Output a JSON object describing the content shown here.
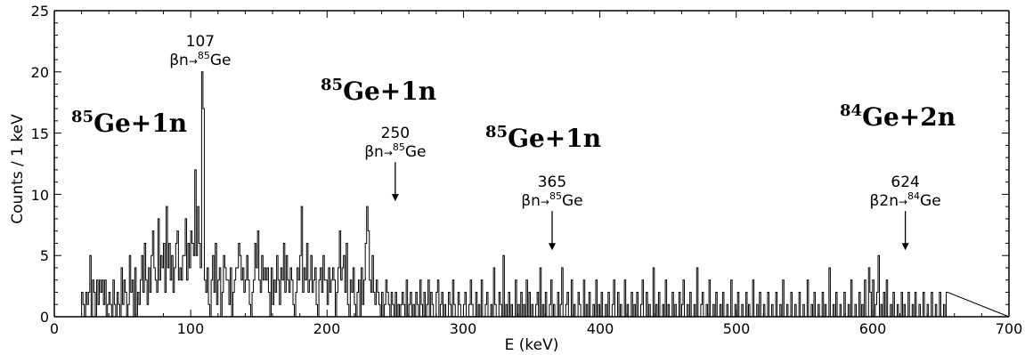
{
  "chart_data": {
    "type": "histogram",
    "title": "",
    "xlabel": "E (keV)",
    "ylabel": "Counts / 1 keV",
    "xlim": [
      0,
      700
    ],
    "ylim": [
      0,
      25
    ],
    "xticks": [
      "0",
      "100",
      "200",
      "300",
      "400",
      "500",
      "600",
      "700"
    ],
    "yticks": [
      "0",
      "5",
      "10",
      "15",
      "20",
      "25"
    ],
    "grid": false,
    "bin_width_keV": 1,
    "x_start": 20,
    "x_end": 700,
    "counts": [
      2,
      1,
      0,
      2,
      1,
      2,
      5,
      0,
      3,
      2,
      0,
      3,
      1,
      3,
      2,
      3,
      1,
      3,
      0,
      1,
      2,
      1,
      0,
      3,
      1,
      0,
      2,
      1,
      0,
      4,
      1,
      3,
      2,
      0,
      1,
      5,
      2,
      3,
      0,
      4,
      0,
      2,
      1,
      3,
      5,
      2,
      6,
      3,
      1,
      4,
      2,
      5,
      7,
      4,
      3,
      2,
      8,
      3,
      5,
      4,
      6,
      2,
      9,
      4,
      6,
      3,
      5,
      2,
      4,
      6,
      7,
      3,
      4,
      3,
      5,
      5,
      8,
      3,
      6,
      4,
      7,
      6,
      5,
      12,
      5,
      9,
      6,
      4,
      20,
      17,
      3,
      2,
      4,
      1,
      0,
      3,
      5,
      2,
      6,
      1,
      3,
      4,
      0,
      2,
      5,
      4,
      3,
      3,
      1,
      4,
      0,
      2,
      3,
      4,
      4,
      6,
      5,
      3,
      4,
      2,
      3,
      5,
      3,
      1,
      0,
      2,
      3,
      6,
      4,
      7,
      3,
      2,
      5,
      3,
      4,
      3,
      4,
      2,
      0,
      4,
      1,
      3,
      2,
      5,
      3,
      1,
      4,
      3,
      6,
      2,
      5,
      3,
      2,
      4,
      3,
      1,
      0,
      2,
      4,
      3,
      5,
      9,
      2,
      4,
      3,
      6,
      2,
      3,
      5,
      2,
      3,
      4,
      1,
      0,
      3,
      4,
      2,
      5,
      3,
      3,
      1,
      4,
      2,
      3,
      4,
      3,
      0,
      2,
      4,
      7,
      3,
      4,
      5,
      2,
      6,
      1,
      0,
      3,
      2,
      4,
      1,
      0,
      2,
      3,
      0,
      4,
      1,
      3,
      6,
      9,
      7,
      3,
      2,
      5,
      2,
      1,
      3,
      2,
      1,
      0,
      2,
      0,
      1,
      3,
      2,
      1,
      0,
      2,
      1,
      0,
      2,
      0,
      1,
      0,
      1,
      2,
      1,
      0,
      3,
      0,
      1,
      2,
      0,
      1,
      0,
      2,
      1,
      0,
      3,
      1,
      0,
      2,
      0,
      1,
      3,
      0,
      2,
      1,
      0,
      0,
      2,
      3,
      0,
      1,
      2,
      0,
      1,
      0,
      0,
      2,
      1,
      0,
      3,
      1,
      0,
      0,
      2,
      1,
      0,
      0,
      1,
      2,
      0,
      0,
      1,
      3,
      1,
      0,
      0,
      2,
      0,
      1,
      0,
      3,
      0,
      0,
      1,
      2,
      0,
      0,
      1,
      0,
      4,
      1,
      0,
      0,
      2,
      1,
      0,
      5,
      0,
      1,
      0,
      2,
      0,
      1,
      0,
      0,
      3,
      0,
      1,
      0,
      2,
      0,
      1,
      0,
      3,
      0,
      2,
      0,
      1,
      0,
      0,
      1,
      2,
      0,
      4,
      0,
      1,
      0,
      2,
      0,
      0,
      1,
      3,
      0,
      1,
      0,
      0,
      2,
      0,
      1,
      4,
      0,
      0,
      1,
      2,
      0,
      0,
      3,
      0,
      1,
      0,
      0,
      2,
      1,
      0,
      0,
      3,
      0,
      1,
      0,
      2,
      0,
      0,
      1,
      0,
      3,
      0,
      1,
      0,
      2,
      0,
      0,
      1,
      0,
      2,
      0,
      0,
      1,
      3,
      0,
      0,
      2,
      0,
      1,
      0,
      0,
      3,
      0,
      1,
      0,
      0,
      2,
      0,
      1,
      0,
      2,
      0,
      0,
      1,
      3,
      0,
      0,
      2,
      0,
      1,
      0,
      0,
      4,
      0,
      1,
      0,
      2,
      0,
      0,
      1,
      0,
      3,
      0,
      1,
      0,
      0,
      2,
      0,
      1,
      0,
      0,
      2,
      0,
      1,
      3,
      0,
      0,
      1,
      0,
      2,
      0,
      0,
      1,
      0,
      4,
      0,
      0,
      1,
      2,
      0,
      0,
      1,
      0,
      3,
      0,
      0,
      1,
      0,
      2,
      0,
      0,
      1,
      0,
      2,
      0,
      0,
      1,
      0,
      0,
      3,
      0,
      0,
      1,
      0,
      2,
      0,
      0,
      1,
      0,
      0,
      2,
      0,
      1,
      0,
      0,
      3,
      0,
      0,
      1,
      0,
      2,
      0,
      0,
      1,
      0,
      0,
      2,
      0,
      0,
      1,
      0,
      0,
      2,
      0,
      0,
      1,
      0,
      3,
      0,
      0,
      1,
      0,
      0,
      2,
      0,
      0,
      1,
      0,
      0,
      2,
      0,
      0,
      1,
      0,
      0,
      3,
      0,
      0,
      1,
      0,
      2,
      0,
      0,
      1,
      0,
      0,
      2,
      0,
      1,
      0,
      0,
      4,
      0,
      0,
      1,
      0,
      2,
      0,
      0,
      1,
      0,
      0,
      2,
      0,
      0,
      1,
      0,
      3,
      0,
      0,
      1,
      0,
      0,
      2,
      0,
      1,
      0,
      3,
      0,
      0,
      4,
      2,
      0,
      3,
      0,
      1,
      2,
      5,
      0,
      1,
      0,
      2,
      0,
      3,
      0,
      0,
      1,
      0,
      2,
      0,
      0,
      1,
      0,
      0,
      2,
      0,
      1,
      0,
      0,
      2,
      0,
      0,
      1,
      0,
      2,
      0,
      0,
      1,
      0,
      0,
      2,
      0,
      0,
      1,
      0,
      0,
      2,
      0,
      0,
      1,
      0,
      0,
      2,
      0,
      0,
      1,
      0,
      2
    ]
  },
  "peak_annotations": [
    {
      "energy": "107",
      "decay": "βn",
      "target_mass": "85",
      "target_element": "Ge",
      "x": 107,
      "peak_counts": 20,
      "arrow": false
    },
    {
      "energy": "250",
      "decay": "βn",
      "target_mass": "85",
      "target_element": "Ge",
      "x": 250,
      "peak_counts": 9,
      "arrow": true
    },
    {
      "energy": "365",
      "decay": "βn",
      "target_mass": "85",
      "target_element": "Ge",
      "x": 365,
      "peak_counts": 5,
      "arrow": true
    },
    {
      "energy": "624",
      "decay": "β2n",
      "target_mass": "84",
      "target_element": "Ge",
      "x": 624,
      "peak_counts": 5,
      "arrow": true
    }
  ],
  "channel_labels": [
    {
      "mass": "85",
      "text": "Ge+1n"
    },
    {
      "mass": "85",
      "text": "Ge+1n"
    },
    {
      "mass": "85",
      "text": "Ge+1n"
    },
    {
      "mass": "84",
      "text": "Ge+2n"
    }
  ]
}
